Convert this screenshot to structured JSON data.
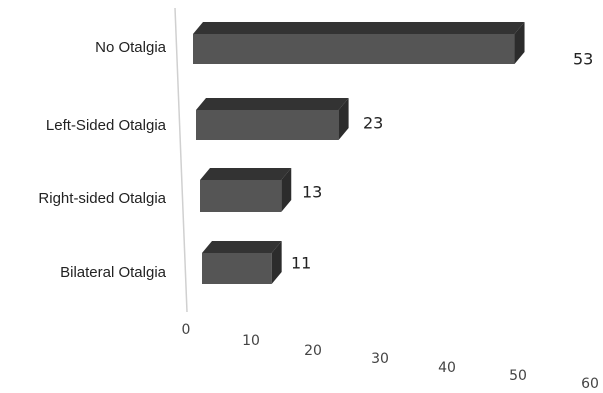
{
  "chart_data": {
    "type": "bar",
    "orientation": "horizontal",
    "style": "3d",
    "categories": [
      "No Otalgia",
      "Left-Sided Otalgia",
      "Right-sided Otalgia",
      "Bilateral Otalgia"
    ],
    "values": [
      53,
      23,
      13,
      11
    ],
    "x_ticks": [
      "0",
      "10",
      "20",
      "30",
      "40",
      "50",
      "60"
    ],
    "xlim": [
      0,
      60
    ],
    "title": "",
    "xlabel": "",
    "ylabel": "",
    "legend": "none",
    "grid": false,
    "colors": {
      "bar_front": "#555555",
      "bar_top": "#333333",
      "bar_side": "#2c2c2c",
      "axis": "#d0d0d0",
      "text": "#222222"
    }
  }
}
